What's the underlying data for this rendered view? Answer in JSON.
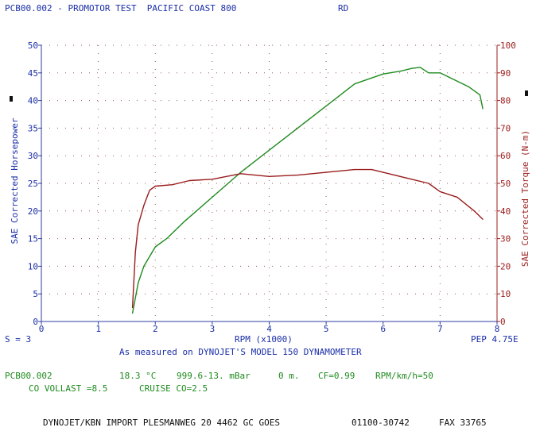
{
  "header": {
    "title": "PCB00.002 - PROMOTOR TEST  PACIFIC COAST 800",
    "run_tag": "RD"
  },
  "chart_data": {
    "type": "line",
    "xlabel": "RPM (x1000)",
    "ylabel_left": "SAE Corrected Horsepower",
    "ylabel_right": "SAE Corrected Torque (N-m)",
    "xlim": [
      0,
      8
    ],
    "ylim_left": [
      0,
      50
    ],
    "ylim_right": [
      0,
      100
    ],
    "x_ticks": [
      "0",
      "1",
      "2",
      "3",
      "4",
      "5",
      "6",
      "7",
      "8"
    ],
    "y_ticks_left": [
      "0",
      "5",
      "10",
      "15",
      "20",
      "25",
      "30",
      "35",
      "40",
      "45",
      "50"
    ],
    "y_ticks_right": [
      "0",
      "10",
      "20",
      "30",
      "40",
      "50",
      "60",
      "70",
      "80",
      "90",
      "100"
    ],
    "grid": true,
    "series": [
      {
        "axis": "left",
        "color": "#1f8a1f",
        "points": [
          [
            1.6,
            1.5
          ],
          [
            1.7,
            7.0
          ],
          [
            1.8,
            10.0
          ],
          [
            2.0,
            13.5
          ],
          [
            2.2,
            15.0
          ],
          [
            2.5,
            18.0
          ],
          [
            3.0,
            22.5
          ],
          [
            3.5,
            27.0
          ],
          [
            4.0,
            31.0
          ],
          [
            4.5,
            35.0
          ],
          [
            5.0,
            39.0
          ],
          [
            5.5,
            43.0
          ],
          [
            6.0,
            44.8
          ],
          [
            6.3,
            45.3
          ],
          [
            6.5,
            45.8
          ],
          [
            6.65,
            46.0
          ],
          [
            6.8,
            45.0
          ],
          [
            7.0,
            45.0
          ],
          [
            7.2,
            44.0
          ],
          [
            7.5,
            42.5
          ],
          [
            7.7,
            41.0
          ],
          [
            7.75,
            38.5
          ]
        ]
      },
      {
        "axis": "right",
        "color": "#9a1c1c",
        "points": [
          [
            1.6,
            5.0
          ],
          [
            1.65,
            25.0
          ],
          [
            1.7,
            35.0
          ],
          [
            1.8,
            42.0
          ],
          [
            1.9,
            47.5
          ],
          [
            2.0,
            49.0
          ],
          [
            2.3,
            49.5
          ],
          [
            2.6,
            51.0
          ],
          [
            3.0,
            51.5
          ],
          [
            3.5,
            53.5
          ],
          [
            4.0,
            52.5
          ],
          [
            4.5,
            53.0
          ],
          [
            5.0,
            54.0
          ],
          [
            5.5,
            55.0
          ],
          [
            5.8,
            55.0
          ],
          [
            6.2,
            53.0
          ],
          [
            6.5,
            51.5
          ],
          [
            6.8,
            50.0
          ],
          [
            7.0,
            47.0
          ],
          [
            7.3,
            45.0
          ],
          [
            7.6,
            40.0
          ],
          [
            7.75,
            37.0
          ]
        ]
      }
    ]
  },
  "info": {
    "smoothing": "S = 3",
    "note": "As measured on DYNOJET'S MODEL 150 DYNAMOMETER",
    "version": "PEP 4.75E",
    "file": "PCB00.002",
    "temperature": "18.3 °C",
    "pressure": "999.6-13. mBar",
    "altitude": "0 m.",
    "correction_factor": "CF=0.99",
    "rpm_ratio": "RPM/km/h=50",
    "co_idle": "CO VOLLAST =8.5",
    "co_cruise": "CRUISE CO=2.5"
  },
  "footer": {
    "dealer": "DYNOJET/KBN IMPORT PLESMANWEG 20 4462 GC GOES",
    "phone": "01100-30742",
    "fax": "FAX 33765"
  }
}
